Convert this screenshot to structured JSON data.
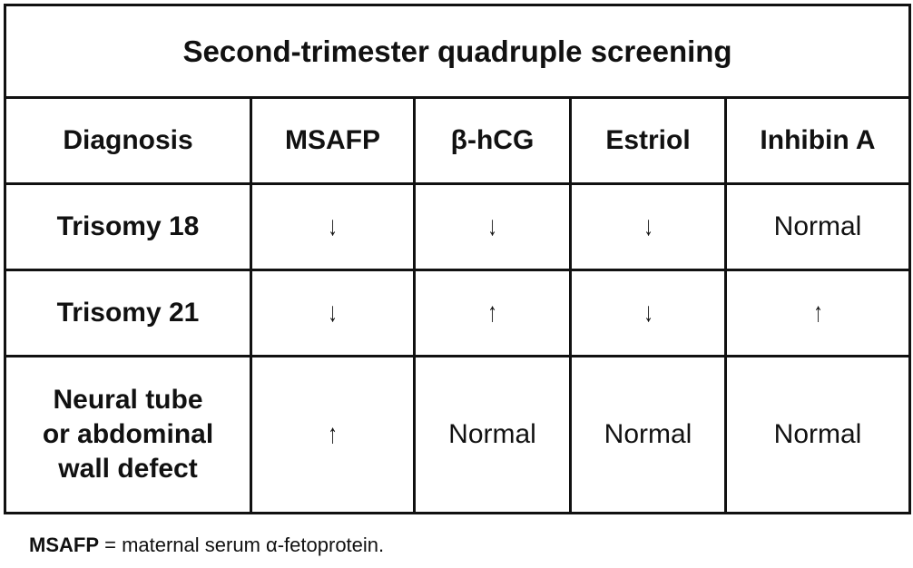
{
  "title": "Second-trimester quadruple screening",
  "columns": [
    "Diagnosis",
    "MSAFP",
    "β-hCG",
    "Estriol",
    "Inhibin A"
  ],
  "rows": [
    {
      "diagnosis": "Trisomy 18",
      "values": [
        "↓",
        "↓",
        "↓",
        "Normal"
      ]
    },
    {
      "diagnosis": "Trisomy 21",
      "values": [
        "↓",
        "↑",
        "↓",
        "↑"
      ]
    },
    {
      "diagnosis_lines": [
        "Neural tube",
        "or abdominal",
        "wall defect"
      ],
      "values": [
        "↑",
        "Normal",
        "Normal",
        "Normal"
      ]
    }
  ],
  "footnote": {
    "abbr": "MSAFP",
    "definition": " = maternal serum α-fetoprotein."
  }
}
